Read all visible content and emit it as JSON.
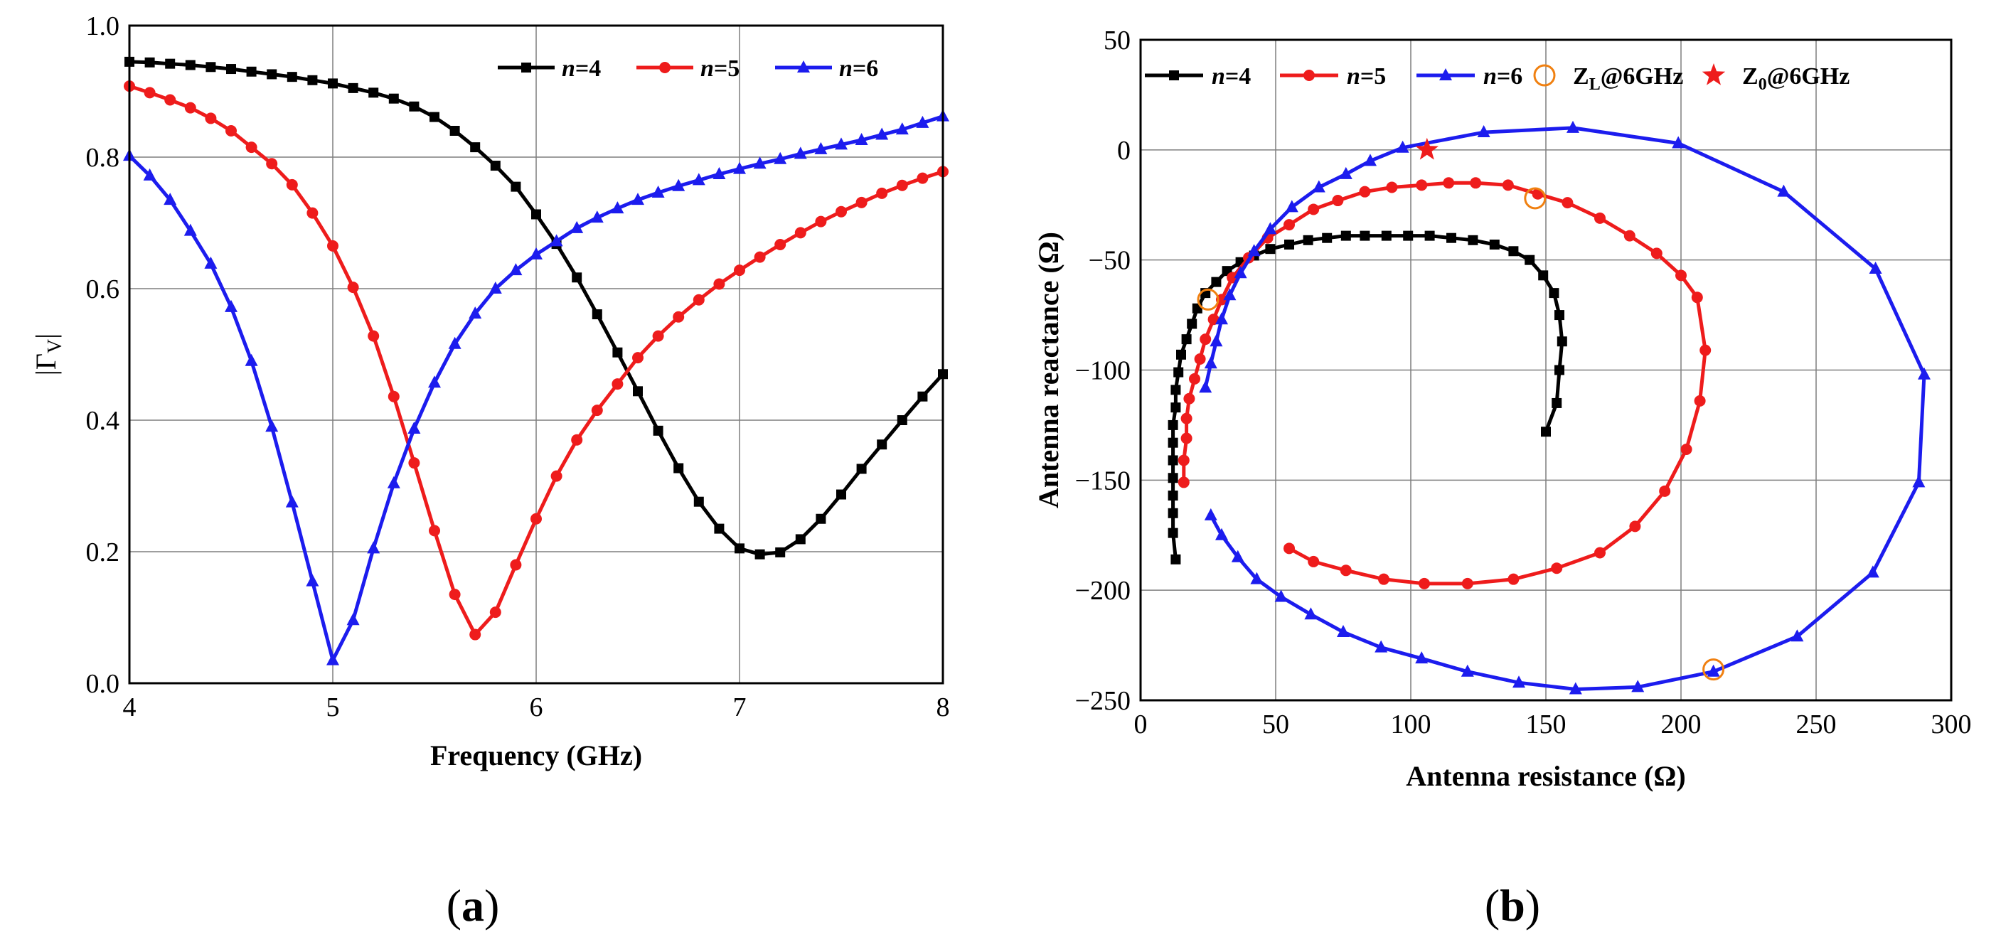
{
  "colors": {
    "n4": "#000000",
    "n5": "#ee1c1c",
    "n6": "#1c1cee",
    "zl": "#f08010",
    "z0": "#ee1c1c",
    "grid": "#7f7f7f"
  },
  "panels": {
    "a": {
      "label_open": "(",
      "label_letter": "a",
      "label_close": ")"
    },
    "b": {
      "label_open": "(",
      "label_letter": "b",
      "label_close": ")"
    }
  },
  "chart_data": [
    {
      "type": "line",
      "title": "",
      "xlabel": "Frequency (GHz)",
      "ylabel_main": "|Γ",
      "ylabel_sub": "V",
      "ylabel_end": "|",
      "xlim": [
        4,
        8
      ],
      "ylim": [
        0,
        1
      ],
      "xticks": [
        4,
        5,
        6,
        7,
        8
      ],
      "xtick_labels": [
        "4",
        "5",
        "6",
        "7",
        "8"
      ],
      "yticks": [
        0,
        0.2,
        0.4,
        0.6,
        0.8,
        1.0
      ],
      "ytick_labels": [
        "0.0",
        "0.2",
        "0.4",
        "0.6",
        "0.8",
        "1.0"
      ],
      "grid": true,
      "legend_position": "top-right",
      "series": [
        {
          "name": "n=4",
          "n_label": "n",
          "eq_label": "=4",
          "marker": "square",
          "color": "#000000",
          "x": [
            4.0,
            4.1,
            4.2,
            4.3,
            4.4,
            4.5,
            4.6,
            4.7,
            4.8,
            4.9,
            5.0,
            5.1,
            5.2,
            5.3,
            5.4,
            5.5,
            5.6,
            5.7,
            5.8,
            5.9,
            6.0,
            6.1,
            6.2,
            6.3,
            6.4,
            6.5,
            6.6,
            6.7,
            6.8,
            6.9,
            7.0,
            7.1,
            7.2,
            7.3,
            7.4,
            7.5,
            7.6,
            7.7,
            7.8,
            7.9,
            8.0
          ],
          "y": [
            0.945,
            0.944,
            0.942,
            0.94,
            0.937,
            0.934,
            0.93,
            0.926,
            0.922,
            0.917,
            0.912,
            0.905,
            0.898,
            0.889,
            0.877,
            0.861,
            0.84,
            0.815,
            0.787,
            0.755,
            0.713,
            0.668,
            0.617,
            0.561,
            0.503,
            0.444,
            0.384,
            0.327,
            0.276,
            0.235,
            0.205,
            0.196,
            0.199,
            0.219,
            0.25,
            0.287,
            0.326,
            0.363,
            0.4,
            0.436,
            0.47
          ]
        },
        {
          "name": "n=5",
          "n_label": "n",
          "eq_label": "=5",
          "marker": "circle",
          "color": "#ee1c1c",
          "x": [
            4.0,
            4.1,
            4.2,
            4.3,
            4.4,
            4.5,
            4.6,
            4.7,
            4.8,
            4.9,
            5.0,
            5.1,
            5.2,
            5.3,
            5.4,
            5.5,
            5.6,
            5.7,
            5.8,
            5.9,
            6.0,
            6.1,
            6.2,
            6.3,
            6.4,
            6.5,
            6.6,
            6.7,
            6.8,
            6.9,
            7.0,
            7.1,
            7.2,
            7.3,
            7.4,
            7.5,
            7.6,
            7.7,
            7.8,
            7.9,
            8.0
          ],
          "y": [
            0.908,
            0.898,
            0.887,
            0.875,
            0.859,
            0.84,
            0.815,
            0.79,
            0.758,
            0.715,
            0.665,
            0.602,
            0.528,
            0.436,
            0.335,
            0.232,
            0.135,
            0.074,
            0.108,
            0.18,
            0.25,
            0.315,
            0.37,
            0.415,
            0.455,
            0.495,
            0.528,
            0.557,
            0.583,
            0.607,
            0.628,
            0.648,
            0.667,
            0.685,
            0.702,
            0.717,
            0.731,
            0.745,
            0.757,
            0.768,
            0.778
          ]
        },
        {
          "name": "n=6",
          "n_label": "n",
          "eq_label": "=6",
          "marker": "triangle",
          "color": "#1c1cee",
          "x": [
            4.0,
            4.1,
            4.2,
            4.3,
            4.4,
            4.5,
            4.6,
            4.7,
            4.8,
            4.9,
            5.0,
            5.1,
            5.2,
            5.3,
            5.4,
            5.5,
            5.6,
            5.7,
            5.8,
            5.9,
            6.0,
            6.1,
            6.2,
            6.3,
            6.4,
            6.5,
            6.6,
            6.7,
            6.8,
            6.9,
            7.0,
            7.1,
            7.2,
            7.3,
            7.4,
            7.5,
            7.6,
            7.7,
            7.8,
            7.9,
            8.0
          ],
          "y": [
            0.802,
            0.772,
            0.735,
            0.688,
            0.638,
            0.572,
            0.49,
            0.39,
            0.275,
            0.155,
            0.035,
            0.096,
            0.205,
            0.304,
            0.387,
            0.457,
            0.516,
            0.562,
            0.6,
            0.628,
            0.652,
            0.672,
            0.692,
            0.708,
            0.722,
            0.735,
            0.746,
            0.756,
            0.765,
            0.774,
            0.782,
            0.79,
            0.797,
            0.805,
            0.812,
            0.819,
            0.826,
            0.834,
            0.842,
            0.852,
            0.862
          ]
        }
      ]
    },
    {
      "type": "line",
      "title": "",
      "xlabel": "Antenna resistance (Ω)",
      "ylabel": "Antenna reactance (Ω)",
      "xlim": [
        0,
        300
      ],
      "ylim": [
        -250,
        50
      ],
      "xticks": [
        0,
        50,
        100,
        150,
        200,
        250,
        300
      ],
      "xtick_labels": [
        "0",
        "50",
        "100",
        "150",
        "200",
        "250",
        "300"
      ],
      "yticks": [
        -250,
        -200,
        -150,
        -100,
        -50,
        0,
        50
      ],
      "ytick_labels": [
        "−250",
        "−200",
        "−150",
        "−100",
        "−50",
        "0",
        "50"
      ],
      "grid": true,
      "legend_position": "top",
      "series": [
        {
          "name": "n=4",
          "n_label": "n",
          "eq_label": "=4",
          "marker": "square",
          "color": "#000000",
          "x": [
            150,
            154,
            155,
            156,
            155,
            153,
            149,
            144,
            138,
            131,
            123,
            115,
            107,
            99,
            91,
            83,
            76,
            69,
            62,
            55,
            48,
            42,
            37,
            32,
            28,
            24,
            21,
            19,
            17,
            15,
            14,
            13,
            13,
            12,
            12,
            12,
            12,
            12,
            12,
            12,
            13
          ],
          "y": [
            -128,
            -115,
            -100,
            -87,
            -75,
            -65,
            -57,
            -50,
            -46,
            -43,
            -41,
            -40,
            -39,
            -39,
            -39,
            -39,
            -39,
            -40,
            -41,
            -43,
            -45,
            -48,
            -51,
            -55,
            -60,
            -65,
            -72,
            -79,
            -86,
            -93,
            -101,
            -109,
            -117,
            -125,
            -133,
            -141,
            -149,
            -157,
            -165,
            -174,
            -186
          ]
        },
        {
          "name": "n=5",
          "n_label": "n",
          "eq_label": "=5",
          "marker": "circle",
          "color": "#ee1c1c",
          "x": [
            16,
            16,
            17,
            17,
            18,
            20,
            22,
            24,
            27,
            30,
            34,
            40,
            47,
            55,
            64,
            73,
            83,
            93,
            104,
            114,
            124,
            136,
            147,
            158,
            170,
            181,
            191,
            200,
            206,
            209,
            207,
            202,
            194,
            183,
            170,
            154,
            138,
            121,
            105,
            90,
            76,
            64,
            55
          ],
          "y": [
            -151,
            -141,
            -131,
            -122,
            -113,
            -104,
            -95,
            -86,
            -77,
            -68,
            -58,
            -49,
            -40,
            -34,
            -27,
            -23,
            -19,
            -17,
            -16,
            -15,
            -15,
            -16,
            -20,
            -24,
            -31,
            -39,
            -47,
            -57,
            -67,
            -91,
            -114,
            -136,
            -155,
            -171,
            -183,
            -190,
            -195,
            -197,
            -197,
            -195,
            -191,
            -187,
            -181
          ]
        },
        {
          "name": "n=6",
          "n_label": "n",
          "eq_label": "=6",
          "marker": "triangle",
          "color": "#1c1cee",
          "x": [
            24,
            26,
            28,
            30,
            33,
            37,
            42,
            48,
            56,
            66,
            76,
            85,
            97,
            127,
            160,
            199,
            238,
            272,
            290,
            288,
            271,
            243,
            212,
            184,
            161,
            140,
            121,
            104,
            89,
            75,
            63,
            52,
            43,
            36,
            30,
            26
          ],
          "y": [
            -108,
            -97,
            -87,
            -77,
            -66,
            -56,
            -46,
            -36,
            -26,
            -17,
            -11,
            -5,
            1,
            8,
            10,
            3,
            -19,
            -54,
            -102,
            -151,
            -192,
            -221,
            -237,
            -244,
            -245,
            -242,
            -237,
            -231,
            -226,
            -219,
            -211,
            -203,
            -195,
            -185,
            -175,
            -166
          ]
        },
        {
          "name": "ZL@6GHz",
          "label_main": "Z",
          "label_sub": "L",
          "label_rest": "@6GHz",
          "marker": "open-circle",
          "color": "#f08010",
          "x": [
            146,
            25,
            212
          ],
          "y": [
            -22,
            -68,
            -236
          ]
        },
        {
          "name": "Z0@6GHz",
          "label_main": "Z",
          "label_sub": "0",
          "label_rest": "@6GHz",
          "marker": "star",
          "color": "#ee1c1c",
          "x": [
            106
          ],
          "y": [
            0
          ]
        }
      ]
    }
  ]
}
